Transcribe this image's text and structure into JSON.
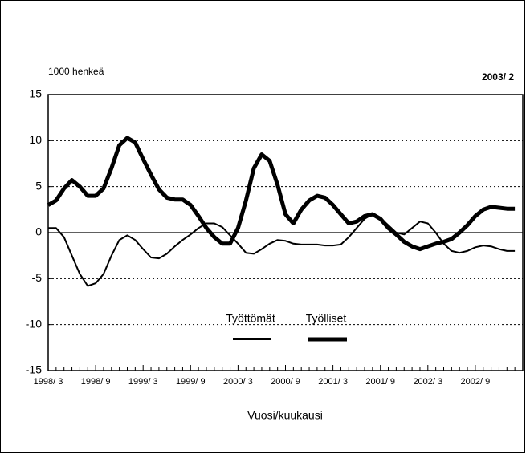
{
  "chart_data": {
    "type": "line",
    "title": "2003/ 2",
    "y_label": "1000 henkeä",
    "x_label": "Vuosi/kuukausi",
    "categories": [
      "1998/ 3",
      null,
      null,
      null,
      null,
      null,
      "1998/ 9",
      null,
      null,
      null,
      null,
      null,
      "1999/ 3",
      null,
      null,
      null,
      null,
      null,
      "1999/ 9",
      null,
      null,
      null,
      null,
      null,
      "2000/ 3",
      null,
      null,
      null,
      null,
      null,
      "2000/ 9",
      null,
      null,
      null,
      null,
      null,
      "2001/ 3",
      null,
      null,
      null,
      null,
      null,
      "2001/ 9",
      null,
      null,
      null,
      null,
      null,
      "2002/ 3",
      null,
      null,
      null,
      null,
      null,
      "2002/ 9",
      null,
      null,
      null,
      null,
      null
    ],
    "series": [
      {
        "name": "Työttömät",
        "color": "#000000",
        "width": 2,
        "values": [
          0.5,
          0.5,
          -0.5,
          -2.5,
          -4.5,
          -5.8,
          -5.5,
          -4.5,
          -2.5,
          -0.8,
          -0.3,
          -0.8,
          -1.8,
          -2.7,
          -2.8,
          -2.3,
          -1.5,
          -0.8,
          -0.2,
          0.5,
          1,
          1,
          0.6,
          -0.3,
          -1.2,
          -2.2,
          -2.3,
          -1.8,
          -1.2,
          -0.8,
          -0.9,
          -1.2,
          -1.3,
          -1.3,
          -1.3,
          -1.4,
          -1.4,
          -1.3,
          -0.5,
          0.5,
          1.5,
          2,
          1.6,
          0.8,
          0,
          -0.2,
          0.5,
          1.2,
          1,
          0,
          -1.2,
          -2,
          -2.2,
          -2,
          -1.6,
          -1.4,
          -1.5,
          -1.8,
          -2,
          -2
        ]
      },
      {
        "name": "Työlliset",
        "color": "#000000",
        "width": 5,
        "values": [
          3,
          3.5,
          4.8,
          5.7,
          5,
          4,
          4,
          4.8,
          7,
          9.5,
          10.3,
          9.8,
          8,
          6.3,
          4.7,
          3.8,
          3.6,
          3.6,
          3,
          1.8,
          0.5,
          -0.5,
          -1.2,
          -1.2,
          0.5,
          3.5,
          7,
          8.5,
          7.8,
          5.2,
          2,
          1,
          2.5,
          3.5,
          4,
          3.8,
          3,
          2,
          1,
          1.2,
          1.8,
          2,
          1.5,
          0.5,
          -0.2,
          -1,
          -1.5,
          -1.8,
          -1.5,
          -1.2,
          -1,
          -0.7,
          0,
          0.8,
          1.8,
          2.5,
          2.8,
          2.7,
          2.6,
          2.6
        ]
      }
    ],
    "ylim": [
      -15,
      15
    ],
    "yticks": [
      -15,
      -10,
      -5,
      0,
      5,
      10,
      15
    ],
    "grid": true
  }
}
